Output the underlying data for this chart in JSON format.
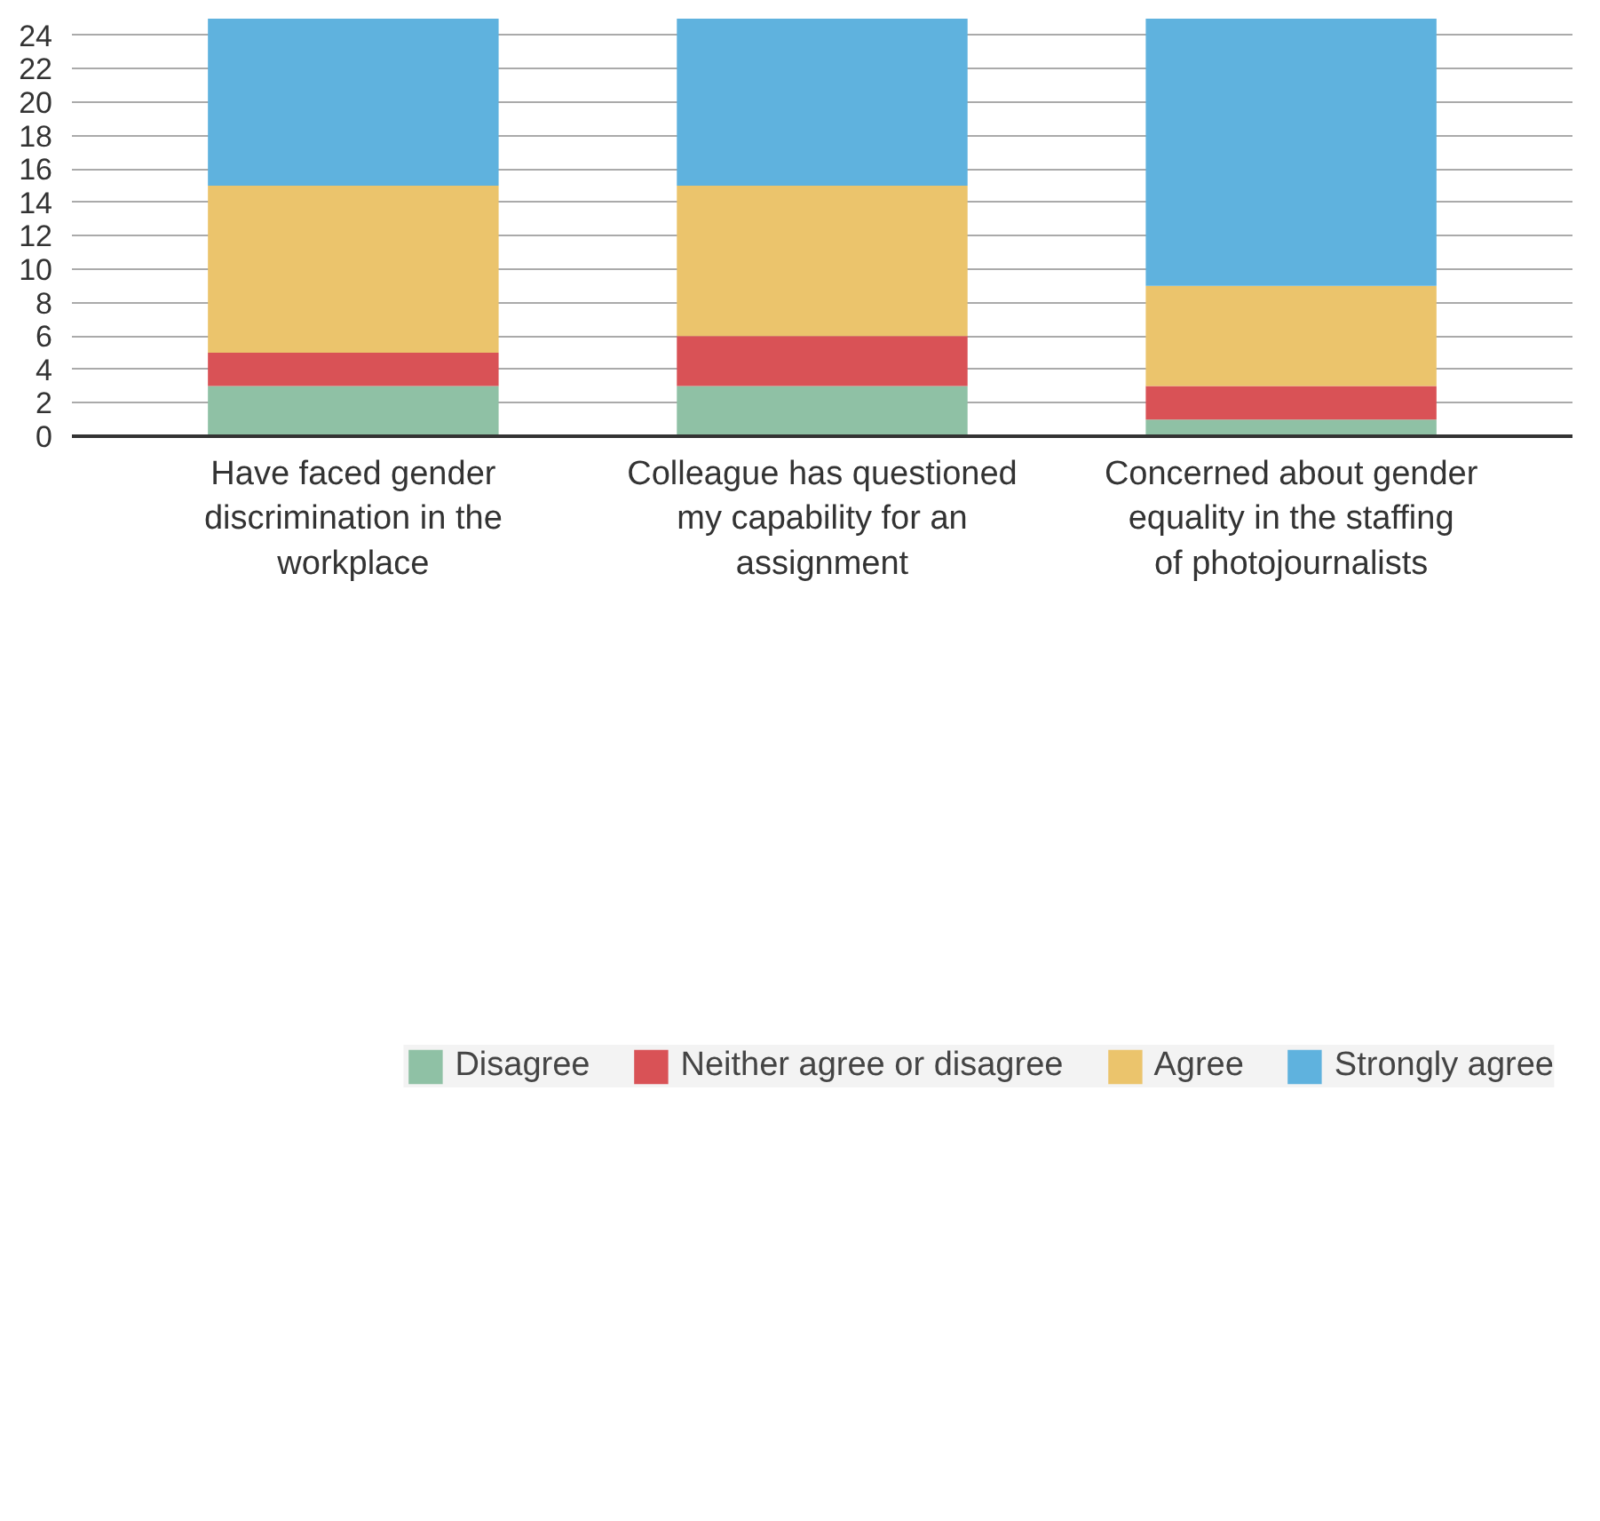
{
  "chart_data": {
    "type": "bar",
    "stacked": true,
    "categories": [
      "Have faced gender discrimination in the workplace",
      "Colleague has questioned my capability for an assignment",
      "Concerned about gender equality in the staffing of photojournalists"
    ],
    "series": [
      {
        "name": "Disagree",
        "color": "#8fc1a5",
        "values": [
          3,
          3,
          1
        ]
      },
      {
        "name": "Neither agree or disagree",
        "color": "#d95256",
        "values": [
          2,
          3,
          2
        ]
      },
      {
        "name": "Agree",
        "color": "#ebc46c",
        "values": [
          10,
          9,
          6
        ]
      },
      {
        "name": "Strongly agree",
        "color": "#5fb2de",
        "values": [
          10,
          10,
          16
        ]
      }
    ],
    "ylim": [
      0,
      25
    ],
    "yticks": [
      0,
      2,
      4,
      6,
      8,
      10,
      12,
      14,
      16,
      18,
      20,
      22,
      24
    ],
    "grid": "y",
    "legend": "bottom"
  }
}
